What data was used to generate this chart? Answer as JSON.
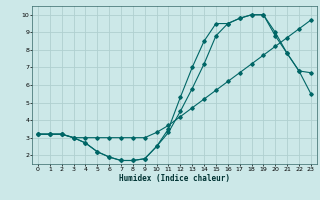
{
  "xlabel": "Humidex (Indice chaleur)",
  "bg_color": "#cce8e8",
  "grid_color": "#b0d0d0",
  "line_color": "#006666",
  "xlim": [
    -0.5,
    23.5
  ],
  "ylim": [
    1.5,
    10.5
  ],
  "xticks": [
    0,
    1,
    2,
    3,
    4,
    5,
    6,
    7,
    8,
    9,
    10,
    11,
    12,
    13,
    14,
    15,
    16,
    17,
    18,
    19,
    20,
    21,
    22,
    23
  ],
  "yticks": [
    2,
    3,
    4,
    5,
    6,
    7,
    8,
    9,
    10
  ],
  "line1_x": [
    0,
    1,
    2,
    3,
    4,
    5,
    6,
    7,
    8,
    9,
    10,
    11,
    12,
    13,
    14,
    15,
    16,
    17,
    18,
    19,
    20,
    21,
    22,
    23
  ],
  "line1_y": [
    3.2,
    3.2,
    3.2,
    3.0,
    3.0,
    3.0,
    3.0,
    3.0,
    3.0,
    3.0,
    3.3,
    3.7,
    4.2,
    4.7,
    5.2,
    5.7,
    6.2,
    6.7,
    7.2,
    7.7,
    8.2,
    8.7,
    9.2,
    9.7
  ],
  "line2_x": [
    0,
    1,
    2,
    3,
    4,
    5,
    6,
    7,
    8,
    9,
    10,
    11,
    12,
    13,
    14,
    15,
    16,
    17,
    18,
    19,
    20,
    21,
    22,
    23
  ],
  "line2_y": [
    3.2,
    3.2,
    3.2,
    3.0,
    2.7,
    2.2,
    1.9,
    1.7,
    1.7,
    1.8,
    2.5,
    3.5,
    5.3,
    7.0,
    8.5,
    9.5,
    9.5,
    9.8,
    10.0,
    10.0,
    9.0,
    7.8,
    6.8,
    5.5
  ],
  "line3_x": [
    0,
    1,
    2,
    3,
    4,
    5,
    6,
    7,
    8,
    9,
    10,
    11,
    12,
    13,
    14,
    15,
    16,
    17,
    18,
    19,
    20,
    21,
    22,
    23
  ],
  "line3_y": [
    3.2,
    3.2,
    3.2,
    3.0,
    2.7,
    2.2,
    1.9,
    1.7,
    1.7,
    1.8,
    2.5,
    3.3,
    4.5,
    5.8,
    7.2,
    8.8,
    9.5,
    9.8,
    10.0,
    10.0,
    8.8,
    7.8,
    6.8,
    6.7
  ]
}
